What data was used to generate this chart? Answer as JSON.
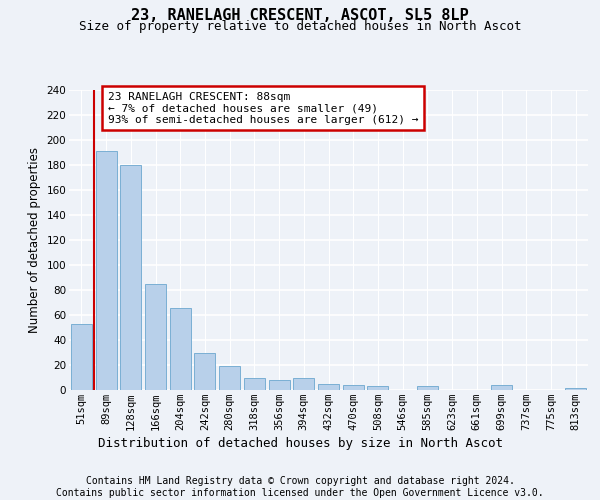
{
  "title1": "23, RANELAGH CRESCENT, ASCOT, SL5 8LP",
  "title2": "Size of property relative to detached houses in North Ascot",
  "xlabel": "Distribution of detached houses by size in North Ascot",
  "ylabel": "Number of detached properties",
  "categories": [
    "51sqm",
    "89sqm",
    "128sqm",
    "166sqm",
    "204sqm",
    "242sqm",
    "280sqm",
    "318sqm",
    "356sqm",
    "394sqm",
    "432sqm",
    "470sqm",
    "508sqm",
    "546sqm",
    "585sqm",
    "623sqm",
    "661sqm",
    "699sqm",
    "737sqm",
    "775sqm",
    "813sqm"
  ],
  "values": [
    53,
    191,
    180,
    85,
    66,
    30,
    19,
    10,
    8,
    10,
    5,
    4,
    3,
    0,
    3,
    0,
    0,
    4,
    0,
    0,
    2
  ],
  "bar_color": "#b8d0ea",
  "bar_edge_color": "#7aafd4",
  "ylim": [
    0,
    240
  ],
  "yticks": [
    0,
    20,
    40,
    60,
    80,
    100,
    120,
    140,
    160,
    180,
    200,
    220,
    240
  ],
  "annotation_box_text": "23 RANELAGH CRESCENT: 88sqm\n← 7% of detached houses are smaller (49)\n93% of semi-detached houses are larger (612) →",
  "annotation_box_color": "white",
  "annotation_box_edge_color": "#cc0000",
  "vertical_line_color": "#cc0000",
  "footer1": "Contains HM Land Registry data © Crown copyright and database right 2024.",
  "footer2": "Contains public sector information licensed under the Open Government Licence v3.0.",
  "background_color": "#eef2f8",
  "grid_color": "#ffffff",
  "title1_fontsize": 11,
  "title2_fontsize": 9,
  "xlabel_fontsize": 9,
  "ylabel_fontsize": 8.5,
  "tick_fontsize": 7.5,
  "ann_fontsize": 8,
  "footer_fontsize": 7
}
